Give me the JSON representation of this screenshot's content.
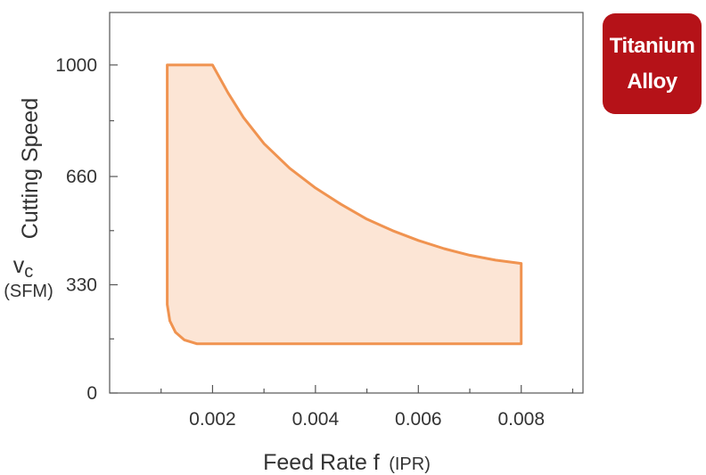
{
  "badge": {
    "line1": "Titanium",
    "line2": "Alloy"
  },
  "chart_data": {
    "type": "area",
    "xlabel": "Feed Rate f",
    "xlabel_unit": "(IPR)",
    "ylabel": "Cutting Speed",
    "ylabel_symbol": "v",
    "ylabel_subscript": "c",
    "ylabel_unit": "(SFM)",
    "xlim": [
      0.0,
      0.0092
    ],
    "ylim": [
      0,
      1160
    ],
    "x_ticks": [
      0.002,
      0.004,
      0.006,
      0.008
    ],
    "x_tick_labels": [
      "0.002",
      "0.004",
      "0.006",
      "0.008"
    ],
    "x_minor_ticks": [
      0.001,
      0.003,
      0.005,
      0.007,
      0.009
    ],
    "y_ticks": [
      0,
      330,
      660,
      1000
    ],
    "y_tick_labels": [
      "0",
      "330",
      "660",
      "1000"
    ],
    "y_minor_ticks": [
      165,
      495,
      830
    ],
    "grid": false,
    "region": {
      "fill_color": "#fce5d5",
      "stroke_color": "#f09350",
      "boundary": [
        [
          0.00112,
          1000
        ],
        [
          0.002,
          1000
        ],
        [
          0.0023,
          915
        ],
        [
          0.0026,
          840
        ],
        [
          0.003,
          760
        ],
        [
          0.0035,
          685
        ],
        [
          0.004,
          625
        ],
        [
          0.0045,
          575
        ],
        [
          0.005,
          530
        ],
        [
          0.0055,
          495
        ],
        [
          0.006,
          465
        ],
        [
          0.0065,
          440
        ],
        [
          0.007,
          420
        ],
        [
          0.0075,
          405
        ],
        [
          0.008,
          395
        ],
        [
          0.008,
          150
        ],
        [
          0.0017,
          150
        ],
        [
          0.00145,
          162
        ],
        [
          0.00128,
          185
        ],
        [
          0.00117,
          220
        ],
        [
          0.00112,
          270
        ]
      ]
    }
  }
}
